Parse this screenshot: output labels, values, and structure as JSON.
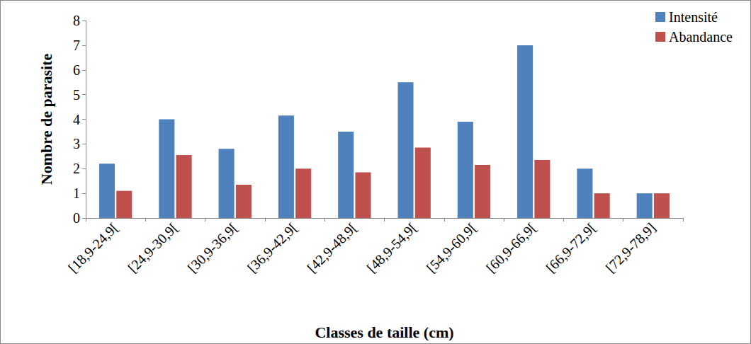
{
  "chart_data": {
    "type": "bar",
    "x_label": "Classes de taille (cm)",
    "y_label": "Nombre de parasite",
    "categories": [
      "[18,9-24,9[",
      "[24,9-30,9[",
      "[30,9-36,9[",
      "[36,9-42,9[",
      "[42,9-48,9[",
      "[48,9-54,9[",
      "[54,9-60,9[",
      "[60,9-66,9[",
      "[66,9-72,9[",
      "[72,9-78,9]"
    ],
    "series": [
      {
        "name": "Intensité",
        "color": "#4f81bd",
        "values": [
          2.2,
          4,
          2.8,
          4.15,
          3.5,
          5.5,
          3.9,
          7,
          2,
          1
        ]
      },
      {
        "name": "Abandance",
        "color": "#c0504d",
        "values": [
          1.1,
          2.55,
          1.35,
          2,
          1.85,
          2.85,
          2.15,
          2.35,
          1,
          1
        ]
      }
    ],
    "ylim": [
      0,
      8
    ],
    "yticks": [
      0,
      1,
      2,
      3,
      4,
      5,
      6,
      7,
      8
    ],
    "grid": false,
    "legend": "upper right"
  }
}
